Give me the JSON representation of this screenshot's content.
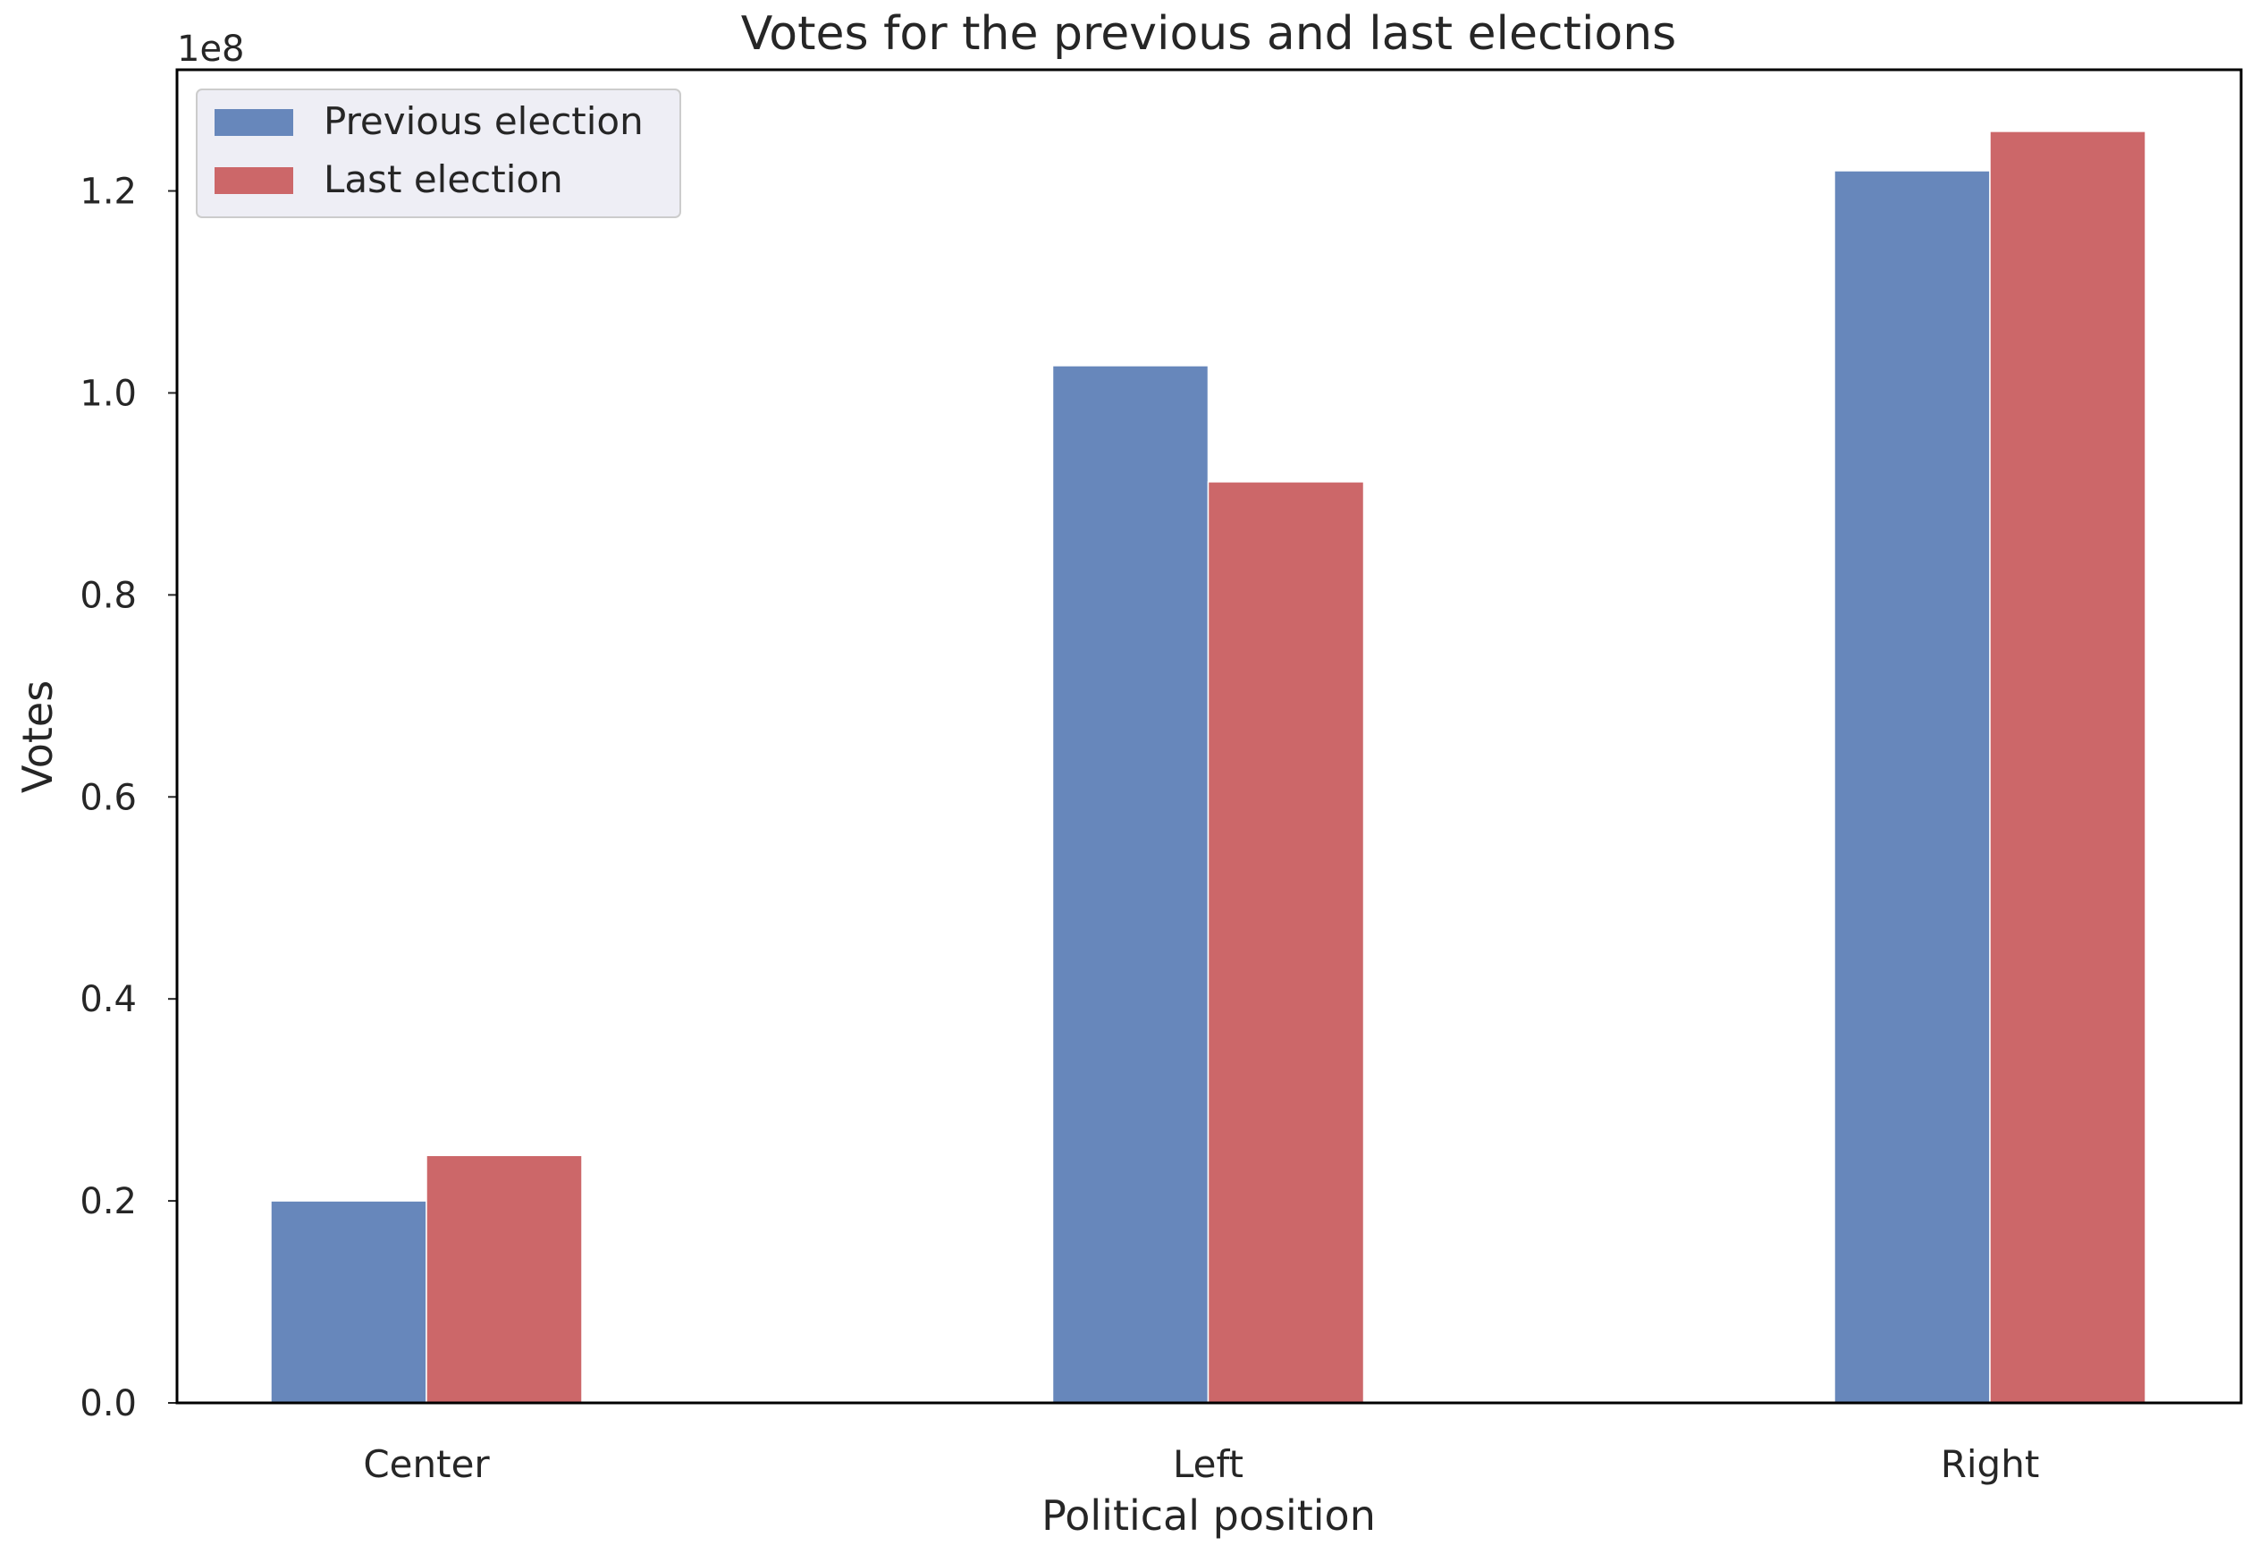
{
  "chart_data": {
    "type": "bar",
    "title": "Votes for the previous and last elections",
    "xlabel": "Political position",
    "ylabel": "Votes",
    "offset_label": "1e8",
    "categories": [
      "Center",
      "Left",
      "Right"
    ],
    "series": [
      {
        "name": "Previous election",
        "color": "#6787bb",
        "values": [
          20000000,
          102700000,
          122000000
        ]
      },
      {
        "name": "Last election",
        "color": "#cc6769",
        "values": [
          24500000,
          91200000,
          125900000
        ]
      }
    ],
    "ylim": [
      0,
      132000000
    ],
    "yticks": [
      0,
      20000000,
      40000000,
      60000000,
      80000000,
      100000000,
      120000000
    ],
    "ytick_labels": [
      "0.0",
      "0.2",
      "0.4",
      "0.6",
      "0.8",
      "1.0",
      "1.2"
    ],
    "grid": false,
    "legend_position": "top-left"
  }
}
